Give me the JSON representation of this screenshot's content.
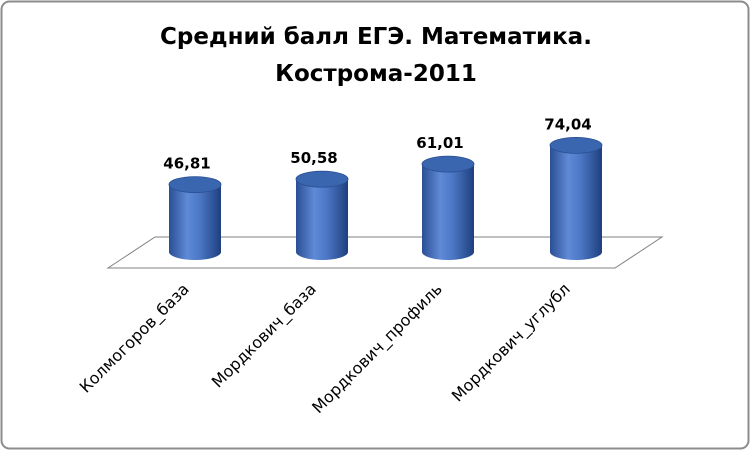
{
  "chart_data": {
    "type": "bar3d",
    "title": [
      "Средний балл ЕГЭ. Математика.",
      "Кострома-2011"
    ],
    "categories": [
      "Колмогоров_база",
      "Мордкович_база",
      "Мордкович_профиль",
      "Мордкович_углубл"
    ],
    "values": [
      46.81,
      50.58,
      61.01,
      74.04
    ],
    "value_labels": [
      "46,81",
      "50,58",
      "61,01",
      "74,04"
    ],
    "color": "#3a66b0"
  }
}
